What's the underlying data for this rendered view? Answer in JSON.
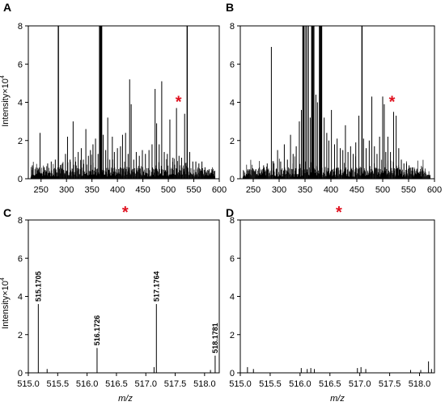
{
  "figure": {
    "y_axis_label": "Intensity×10",
    "y_axis_exponent": "4",
    "x_axis_label": "m/z",
    "marker_symbol": "*",
    "marker_color": "#e0101e",
    "line_color": "#000000"
  },
  "chart_data": [
    {
      "panel": "A",
      "type": "line",
      "plot_style": "stick spectrum",
      "xlim": [
        225,
        600
      ],
      "ylim": [
        0,
        8
      ],
      "xticks": [
        250,
        300,
        350,
        400,
        450,
        500,
        550,
        600
      ],
      "yticks": [
        0,
        2,
        4,
        6,
        8
      ],
      "grid": false,
      "peaks": [
        [
          233,
          0.7
        ],
        [
          248,
          2.4
        ],
        [
          256,
          0.6
        ],
        [
          263,
          0.8
        ],
        [
          270,
          0.9
        ],
        [
          278,
          1.0
        ],
        [
          284,
          8.0
        ],
        [
          292,
          0.8
        ],
        [
          298,
          1.3
        ],
        [
          302,
          2.2
        ],
        [
          307,
          1.0
        ],
        [
          313,
          3.0
        ],
        [
          318,
          0.9
        ],
        [
          323,
          1.4
        ],
        [
          329,
          1.6
        ],
        [
          333,
          1.0
        ],
        [
          338,
          2.6
        ],
        [
          343,
          1.2
        ],
        [
          347,
          1.5
        ],
        [
          352,
          1.8
        ],
        [
          357,
          2.1
        ],
        [
          362,
          1.3
        ],
        [
          365,
          8.0
        ],
        [
          367,
          8.0
        ],
        [
          369,
          8.0
        ],
        [
          372,
          2.3
        ],
        [
          377,
          1.5
        ],
        [
          381,
          3.2
        ],
        [
          385,
          1.0
        ],
        [
          390,
          2.2
        ],
        [
          394,
          1.4
        ],
        [
          400,
          1.6
        ],
        [
          406,
          1.7
        ],
        [
          410,
          2.3
        ],
        [
          416,
          2.4
        ],
        [
          421,
          1.3
        ],
        [
          424,
          5.2
        ],
        [
          427,
          3.9
        ],
        [
          432,
          1.0
        ],
        [
          437,
          1.4
        ],
        [
          443,
          1.2
        ],
        [
          449,
          1.5
        ],
        [
          455,
          1.3
        ],
        [
          462,
          1.5
        ],
        [
          468,
          1.8
        ],
        [
          474,
          4.7
        ],
        [
          477,
          2.9
        ],
        [
          482,
          1.8
        ],
        [
          487,
          5.1
        ],
        [
          492,
          1.4
        ],
        [
          498,
          1.3
        ],
        [
          503,
          3.1
        ],
        [
          509,
          1.1
        ],
        [
          516,
          3.7
        ],
        [
          521,
          1.2
        ],
        [
          526,
          1.1
        ],
        [
          532,
          3.4
        ],
        [
          537,
          8.0
        ],
        [
          542,
          1.4
        ],
        [
          548,
          0.9
        ],
        [
          554,
          0.9
        ],
        [
          560,
          0.8
        ],
        [
          566,
          0.9
        ],
        [
          572,
          0.6
        ],
        [
          580,
          0.5
        ],
        [
          590,
          0.4
        ]
      ],
      "marker_x": 520,
      "marker_y": 4.0
    },
    {
      "panel": "B",
      "type": "line",
      "plot_style": "stick spectrum",
      "xlim": [
        225,
        600
      ],
      "ylim": [
        0,
        8
      ],
      "xticks": [
        250,
        300,
        350,
        400,
        450,
        500,
        550,
        600
      ],
      "yticks": [
        0,
        2,
        4,
        6,
        8
      ],
      "grid": false,
      "peaks": [
        [
          240,
          0.5
        ],
        [
          255,
          0.5
        ],
        [
          262,
          0.6
        ],
        [
          270,
          0.7
        ],
        [
          277,
          0.8
        ],
        [
          285,
          6.9
        ],
        [
          290,
          0.8
        ],
        [
          297,
          1.5
        ],
        [
          303,
          0.9
        ],
        [
          310,
          1.8
        ],
        [
          316,
          1.0
        ],
        [
          322,
          2.3
        ],
        [
          327,
          1.3
        ],
        [
          333,
          1.7
        ],
        [
          339,
          3.0
        ],
        [
          343,
          3.6
        ],
        [
          346,
          8.0
        ],
        [
          348,
          8.0
        ],
        [
          352,
          8.0
        ],
        [
          356,
          8.0
        ],
        [
          360,
          3.2
        ],
        [
          363,
          8.0
        ],
        [
          365,
          8.0
        ],
        [
          367,
          8.0
        ],
        [
          371,
          4.4
        ],
        [
          374,
          4.0
        ],
        [
          378,
          8.0
        ],
        [
          380,
          8.0
        ],
        [
          382,
          8.0
        ],
        [
          387,
          3.2
        ],
        [
          392,
          2.4
        ],
        [
          396,
          2.0
        ],
        [
          401,
          3.6
        ],
        [
          407,
          1.8
        ],
        [
          412,
          2.1
        ],
        [
          418,
          1.6
        ],
        [
          423,
          1.5
        ],
        [
          428,
          2.8
        ],
        [
          433,
          1.4
        ],
        [
          438,
          1.7
        ],
        [
          443,
          1.3
        ],
        [
          448,
          1.9
        ],
        [
          454,
          3.3
        ],
        [
          460,
          8.0
        ],
        [
          463,
          2.1
        ],
        [
          468,
          1.6
        ],
        [
          474,
          2.0
        ],
        [
          479,
          4.3
        ],
        [
          484,
          1.7
        ],
        [
          489,
          1.3
        ],
        [
          494,
          2.2
        ],
        [
          500,
          4.3
        ],
        [
          503,
          3.9
        ],
        [
          506,
          1.4
        ],
        [
          510,
          2.2
        ],
        [
          515,
          1.4
        ],
        [
          521,
          3.5
        ],
        [
          526,
          3.3
        ],
        [
          531,
          1.6
        ],
        [
          536,
          1.0
        ],
        [
          541,
          0.8
        ],
        [
          546,
          0.8
        ],
        [
          551,
          0.7
        ],
        [
          558,
          0.6
        ],
        [
          566,
          0.5
        ],
        [
          575,
          0.4
        ]
      ],
      "marker_x": 518,
      "marker_y": 4.0
    },
    {
      "panel": "C",
      "type": "line",
      "plot_style": "stick spectrum",
      "xlim": [
        515.0,
        518.25
      ],
      "ylim": [
        0,
        8
      ],
      "xticks": [
        515.0,
        515.5,
        516.0,
        516.5,
        517.0,
        517.5,
        518.0
      ],
      "yticks": [
        0,
        2,
        4,
        6,
        8
      ],
      "grid": false,
      "peaks": [
        [
          515.17,
          3.6
        ],
        [
          515.32,
          0.2
        ],
        [
          516.17,
          1.3
        ],
        [
          517.18,
          3.6
        ],
        [
          517.14,
          0.3
        ],
        [
          518.18,
          0.9
        ],
        [
          518.1,
          0.15
        ]
      ],
      "data_labels": [
        {
          "x": 515.17,
          "y": 3.6,
          "text": "515.1705"
        },
        {
          "x": 516.17,
          "y": 1.3,
          "text": "516.1726"
        },
        {
          "x": 517.18,
          "y": 3.6,
          "text": "517.1764"
        },
        {
          "x": 518.18,
          "y": 0.9,
          "text": "518.1781"
        }
      ],
      "marker_x": 516.65,
      "marker_y": 8.9
    },
    {
      "panel": "D",
      "type": "line",
      "plot_style": "stick spectrum",
      "xlim": [
        515.0,
        518.25
      ],
      "ylim": [
        0,
        8
      ],
      "xticks": [
        515.0,
        515.5,
        516.0,
        516.5,
        517.0,
        517.5,
        518.0
      ],
      "yticks": [
        0,
        2,
        4,
        6,
        8
      ],
      "grid": false,
      "peaks": [
        [
          515.12,
          0.3
        ],
        [
          515.22,
          0.2
        ],
        [
          516.02,
          0.25
        ],
        [
          516.12,
          0.2
        ],
        [
          516.18,
          0.25
        ],
        [
          516.24,
          0.2
        ],
        [
          516.96,
          0.25
        ],
        [
          517.02,
          0.3
        ],
        [
          517.1,
          0.2
        ],
        [
          517.85,
          0.15
        ],
        [
          518.02,
          0.15
        ],
        [
          518.15,
          0.6
        ],
        [
          518.2,
          0.2
        ]
      ],
      "marker_x": 516.65,
      "marker_y": 8.9
    }
  ]
}
